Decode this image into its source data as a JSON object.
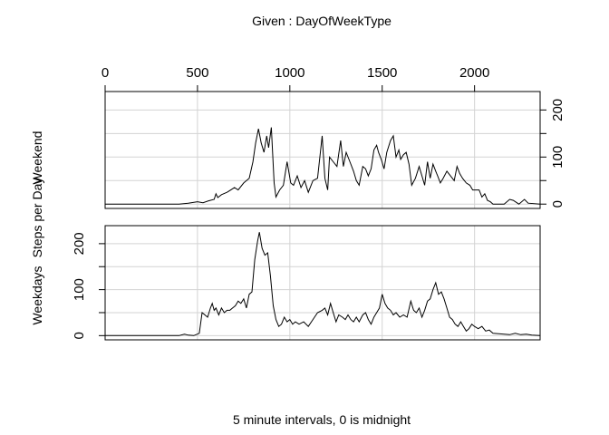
{
  "chart_data": {
    "type": "line",
    "title": "Given : DayOfWeekType",
    "xlabel": "5 minute intervals, 0 is midnight",
    "ylabel": "Steps per Day",
    "xlim": [
      0,
      2355
    ],
    "x_ticks": [
      "0",
      "500",
      "1000",
      "1500",
      "2000"
    ],
    "x_tick_values": [
      0,
      500,
      1000,
      1500,
      2000
    ],
    "grid": true,
    "panels": [
      {
        "name": "Weekend",
        "ylim": [
          0,
          230
        ],
        "y_ticks": [
          "0",
          "100",
          "200"
        ],
        "y_tick_values": [
          0,
          100,
          200
        ],
        "points": [
          [
            0,
            0
          ],
          [
            100,
            0
          ],
          [
            200,
            0
          ],
          [
            300,
            0
          ],
          [
            400,
            0
          ],
          [
            450,
            2
          ],
          [
            500,
            5
          ],
          [
            530,
            3
          ],
          [
            560,
            7
          ],
          [
            590,
            10
          ],
          [
            600,
            22
          ],
          [
            610,
            14
          ],
          [
            630,
            20
          ],
          [
            660,
            25
          ],
          [
            700,
            35
          ],
          [
            720,
            30
          ],
          [
            750,
            45
          ],
          [
            780,
            55
          ],
          [
            800,
            90
          ],
          [
            815,
            130
          ],
          [
            830,
            160
          ],
          [
            845,
            130
          ],
          [
            860,
            110
          ],
          [
            875,
            145
          ],
          [
            885,
            120
          ],
          [
            900,
            163
          ],
          [
            915,
            45
          ],
          [
            925,
            15
          ],
          [
            945,
            30
          ],
          [
            965,
            40
          ],
          [
            985,
            90
          ],
          [
            1005,
            45
          ],
          [
            1020,
            40
          ],
          [
            1040,
            60
          ],
          [
            1060,
            35
          ],
          [
            1080,
            50
          ],
          [
            1100,
            25
          ],
          [
            1125,
            50
          ],
          [
            1150,
            55
          ],
          [
            1175,
            145
          ],
          [
            1190,
            55
          ],
          [
            1205,
            30
          ],
          [
            1215,
            100
          ],
          [
            1235,
            90
          ],
          [
            1255,
            80
          ],
          [
            1275,
            135
          ],
          [
            1290,
            80
          ],
          [
            1305,
            110
          ],
          [
            1325,
            90
          ],
          [
            1345,
            70
          ],
          [
            1360,
            50
          ],
          [
            1375,
            40
          ],
          [
            1395,
            80
          ],
          [
            1410,
            75
          ],
          [
            1425,
            60
          ],
          [
            1440,
            75
          ],
          [
            1455,
            115
          ],
          [
            1470,
            125
          ],
          [
            1480,
            110
          ],
          [
            1495,
            95
          ],
          [
            1510,
            75
          ],
          [
            1525,
            110
          ],
          [
            1545,
            135
          ],
          [
            1560,
            145
          ],
          [
            1575,
            100
          ],
          [
            1590,
            115
          ],
          [
            1600,
            95
          ],
          [
            1615,
            105
          ],
          [
            1630,
            110
          ],
          [
            1645,
            85
          ],
          [
            1660,
            40
          ],
          [
            1680,
            55
          ],
          [
            1700,
            80
          ],
          [
            1715,
            60
          ],
          [
            1730,
            40
          ],
          [
            1745,
            90
          ],
          [
            1760,
            55
          ],
          [
            1775,
            85
          ],
          [
            1790,
            70
          ],
          [
            1800,
            60
          ],
          [
            1815,
            45
          ],
          [
            1830,
            55
          ],
          [
            1850,
            70
          ],
          [
            1870,
            60
          ],
          [
            1890,
            50
          ],
          [
            1905,
            80
          ],
          [
            1920,
            65
          ],
          [
            1935,
            55
          ],
          [
            1955,
            45
          ],
          [
            1975,
            40
          ],
          [
            1990,
            30
          ],
          [
            2005,
            30
          ],
          [
            2025,
            30
          ],
          [
            2040,
            15
          ],
          [
            2055,
            22
          ],
          [
            2070,
            8
          ],
          [
            2085,
            5
          ],
          [
            2100,
            0
          ],
          [
            2130,
            0
          ],
          [
            2160,
            0
          ],
          [
            2190,
            10
          ],
          [
            2210,
            8
          ],
          [
            2240,
            0
          ],
          [
            2270,
            10
          ],
          [
            2290,
            2
          ],
          [
            2355,
            0
          ]
        ]
      },
      {
        "name": "Weekdays",
        "ylim": [
          0,
          230
        ],
        "y_ticks": [
          "0",
          "100",
          "200"
        ],
        "y_tick_values": [
          0,
          100,
          200
        ],
        "points": [
          [
            0,
            0
          ],
          [
            100,
            0
          ],
          [
            200,
            0
          ],
          [
            300,
            0
          ],
          [
            400,
            0
          ],
          [
            430,
            3
          ],
          [
            450,
            1
          ],
          [
            480,
            0
          ],
          [
            510,
            5
          ],
          [
            525,
            50
          ],
          [
            540,
            45
          ],
          [
            555,
            40
          ],
          [
            570,
            60
          ],
          [
            580,
            70
          ],
          [
            590,
            55
          ],
          [
            600,
            60
          ],
          [
            615,
            45
          ],
          [
            630,
            60
          ],
          [
            645,
            50
          ],
          [
            660,
            55
          ],
          [
            675,
            55
          ],
          [
            690,
            60
          ],
          [
            705,
            65
          ],
          [
            720,
            75
          ],
          [
            735,
            70
          ],
          [
            750,
            80
          ],
          [
            765,
            60
          ],
          [
            780,
            90
          ],
          [
            795,
            95
          ],
          [
            810,
            165
          ],
          [
            825,
            205
          ],
          [
            835,
            225
          ],
          [
            850,
            190
          ],
          [
            865,
            175
          ],
          [
            880,
            180
          ],
          [
            895,
            130
          ],
          [
            910,
            65
          ],
          [
            925,
            35
          ],
          [
            940,
            20
          ],
          [
            955,
            25
          ],
          [
            970,
            40
          ],
          [
            985,
            30
          ],
          [
            1000,
            35
          ],
          [
            1015,
            25
          ],
          [
            1030,
            30
          ],
          [
            1050,
            25
          ],
          [
            1075,
            30
          ],
          [
            1100,
            20
          ],
          [
            1125,
            35
          ],
          [
            1150,
            50
          ],
          [
            1175,
            55
          ],
          [
            1190,
            60
          ],
          [
            1205,
            45
          ],
          [
            1220,
            70
          ],
          [
            1235,
            50
          ],
          [
            1250,
            30
          ],
          [
            1265,
            45
          ],
          [
            1285,
            40
          ],
          [
            1300,
            35
          ],
          [
            1315,
            45
          ],
          [
            1330,
            35
          ],
          [
            1345,
            30
          ],
          [
            1360,
            40
          ],
          [
            1375,
            30
          ],
          [
            1395,
            45
          ],
          [
            1410,
            50
          ],
          [
            1425,
            35
          ],
          [
            1440,
            25
          ],
          [
            1455,
            40
          ],
          [
            1470,
            50
          ],
          [
            1485,
            60
          ],
          [
            1500,
            90
          ],
          [
            1515,
            70
          ],
          [
            1530,
            60
          ],
          [
            1545,
            55
          ],
          [
            1560,
            45
          ],
          [
            1575,
            50
          ],
          [
            1595,
            40
          ],
          [
            1615,
            45
          ],
          [
            1635,
            40
          ],
          [
            1655,
            75
          ],
          [
            1670,
            55
          ],
          [
            1685,
            50
          ],
          [
            1700,
            60
          ],
          [
            1715,
            40
          ],
          [
            1730,
            55
          ],
          [
            1745,
            75
          ],
          [
            1760,
            80
          ],
          [
            1775,
            100
          ],
          [
            1790,
            115
          ],
          [
            1805,
            90
          ],
          [
            1820,
            95
          ],
          [
            1835,
            80
          ],
          [
            1850,
            60
          ],
          [
            1865,
            40
          ],
          [
            1880,
            35
          ],
          [
            1895,
            25
          ],
          [
            1910,
            20
          ],
          [
            1925,
            30
          ],
          [
            1940,
            20
          ],
          [
            1955,
            10
          ],
          [
            1970,
            15
          ],
          [
            1985,
            25
          ],
          [
            2000,
            20
          ],
          [
            2020,
            15
          ],
          [
            2040,
            20
          ],
          [
            2060,
            10
          ],
          [
            2080,
            12
          ],
          [
            2100,
            5
          ],
          [
            2130,
            4
          ],
          [
            2160,
            3
          ],
          [
            2190,
            2
          ],
          [
            2220,
            5
          ],
          [
            2250,
            2
          ],
          [
            2280,
            3
          ],
          [
            2310,
            1
          ],
          [
            2355,
            0
          ]
        ]
      }
    ]
  }
}
